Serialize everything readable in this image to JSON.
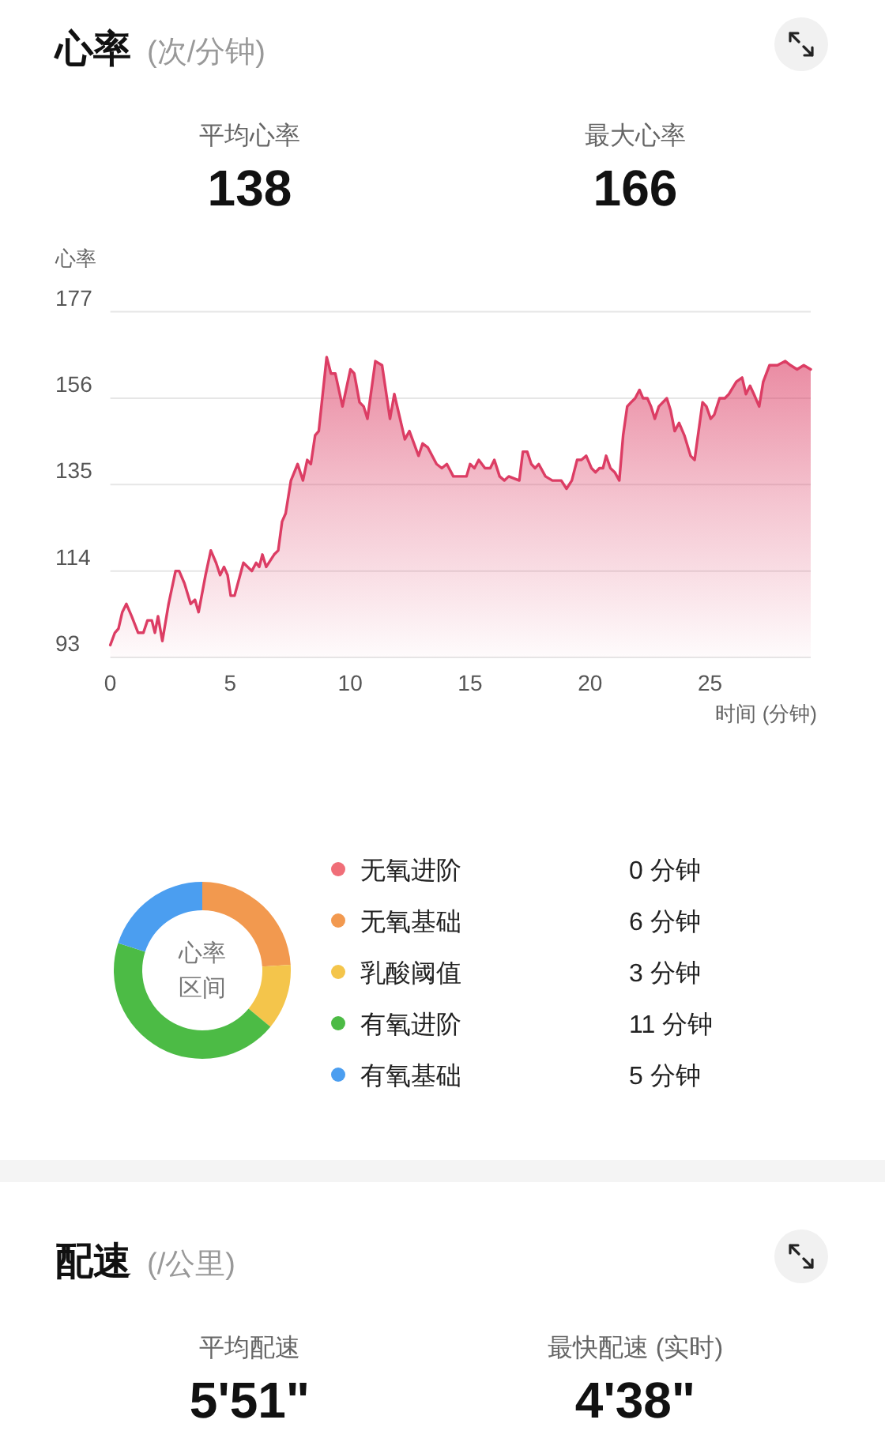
{
  "chart_data": [
    {
      "type": "area",
      "title": "心率",
      "subtitle": "(次/分钟)",
      "annotations": [
        "平均心率",
        "138",
        "最大心率",
        "166"
      ],
      "ylabel": "心率",
      "xlabel": "时间 (分钟)",
      "xlim": [
        0,
        29.2
      ],
      "xticks": [
        0,
        5,
        10,
        15,
        20,
        25
      ],
      "ylim": [
        93,
        177
      ],
      "yticks": [
        93,
        114,
        135,
        156,
        177
      ],
      "grid": "y",
      "series": [
        {
          "color": "#dc3d64",
          "x": [
            0,
            0.19,
            0.34,
            0.5,
            0.67,
            0.89,
            1.16,
            1.38,
            1.55,
            1.73,
            1.86,
            1.99,
            2.17,
            2.43,
            2.72,
            2.87,
            3.09,
            3.35,
            3.53,
            3.68,
            3.97,
            4.19,
            4.41,
            4.58,
            4.74,
            4.89,
            5.02,
            5.18,
            5.55,
            5.9,
            6.08,
            6.21,
            6.34,
            6.5,
            6.83,
            7.0,
            7.16,
            7.31,
            7.53,
            7.81,
            8.03,
            8.21,
            8.36,
            8.54,
            8.69,
            9.02,
            9.2,
            9.38,
            9.68,
            10.01,
            10.17,
            10.39,
            10.56,
            10.72,
            11.05,
            11.33,
            11.66,
            11.84,
            12.28,
            12.47,
            12.85,
            13.02,
            13.24,
            13.6,
            13.82,
            14.03,
            14.3,
            14.85,
            15.0,
            15.18,
            15.36,
            15.62,
            15.84,
            16.01,
            16.23,
            16.43,
            16.61,
            17.05,
            17.2,
            17.38,
            17.55,
            17.71,
            17.86,
            18.14,
            18.43,
            18.8,
            19.02,
            19.24,
            19.46,
            19.64,
            19.84,
            20.06,
            20.23,
            20.39,
            20.54,
            20.67,
            20.85,
            21.03,
            21.22,
            21.38,
            21.55,
            21.71,
            21.88,
            22.06,
            22.21,
            22.39,
            22.54,
            22.7,
            22.87,
            23.2,
            23.36,
            23.53,
            23.71,
            23.93,
            24.19,
            24.36,
            24.69,
            24.85,
            25.03,
            25.18,
            25.4,
            25.62,
            25.79,
            26.1,
            26.34,
            26.5,
            26.67,
            26.83,
            27.05,
            27.22,
            27.48,
            27.81,
            28.14,
            28.36,
            28.63,
            28.91,
            29.2
          ],
          "values": [
            96,
            99,
            100,
            104,
            106,
            103,
            99,
            99,
            102,
            102,
            99,
            103,
            97,
            106,
            114,
            114,
            111,
            106,
            107,
            104,
            113,
            119,
            116,
            113,
            115,
            113,
            108,
            108,
            116,
            114,
            116,
            115,
            118,
            115,
            118,
            119,
            126,
            128,
            136,
            140,
            136,
            141,
            140,
            147,
            148,
            166,
            162,
            162,
            154,
            163,
            162,
            155,
            154,
            151,
            165,
            164,
            151,
            157,
            146,
            148,
            142,
            145,
            144,
            140,
            139,
            140,
            137,
            137,
            140,
            139,
            141,
            139,
            139,
            141,
            137,
            136,
            137,
            136,
            143,
            143,
            140,
            139,
            140,
            137,
            136,
            136,
            134,
            136,
            141,
            141,
            142,
            139,
            138,
            139,
            139,
            142,
            139,
            138,
            136,
            147,
            154,
            155,
            156,
            158,
            156,
            156,
            154,
            151,
            154,
            156,
            153,
            148,
            150,
            147,
            142,
            141,
            155,
            154,
            151,
            152,
            156,
            156,
            157,
            160,
            161,
            157,
            159,
            157,
            154,
            160,
            164,
            164,
            165,
            164,
            163,
            164,
            163
          ]
        }
      ]
    },
    {
      "type": "donut",
      "annotations": [
        "心率",
        "区间"
      ],
      "categories": [
        "无氧进阶",
        "无氧基础",
        "乳酸阈值",
        "有氧进阶",
        "有氧基础"
      ],
      "values": [
        0,
        6,
        3,
        11,
        5
      ],
      "colors": [
        "#f06e78",
        "#f2994f",
        "#f4c54b",
        "#4cbb45",
        "#4b9ef0"
      ],
      "value_labels": [
        "0 分钟",
        "6 分钟",
        "3 分钟",
        "11 分钟",
        "5 分钟"
      ],
      "legend": "right"
    },
    {
      "type": "other",
      "title": "配速",
      "subtitle": "(/公里)",
      "annotations": [
        "平均配速",
        "5'51\"",
        "最快配速 (实时)",
        "4'38\""
      ]
    }
  ]
}
